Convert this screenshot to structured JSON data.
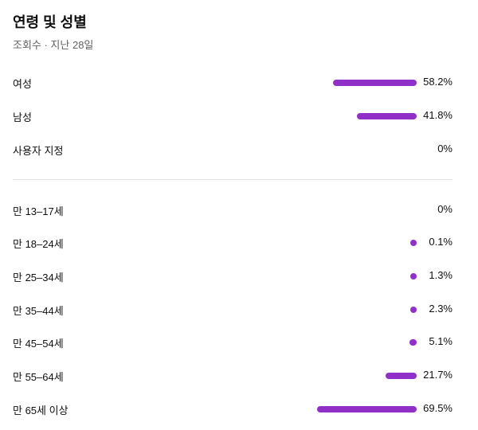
{
  "header": {
    "title": "연령 및 성별",
    "subtitle": "조회수 · 지난 28일"
  },
  "bar_color": "#9130c9",
  "gender": [
    {
      "label": "여성",
      "value": 58.2,
      "display": "58.2%"
    },
    {
      "label": "남성",
      "value": 41.8,
      "display": "41.8%"
    },
    {
      "label": "사용자 지정",
      "value": 0,
      "display": "0%"
    }
  ],
  "age": [
    {
      "label": "만 13–17세",
      "value": 0,
      "display": "0%"
    },
    {
      "label": "만 18–24세",
      "value": 0.1,
      "display": "0.1%"
    },
    {
      "label": "만 25–34세",
      "value": 1.3,
      "display": "1.3%"
    },
    {
      "label": "만 35–44세",
      "value": 2.3,
      "display": "2.3%"
    },
    {
      "label": "만 45–54세",
      "value": 5.1,
      "display": "5.1%"
    },
    {
      "label": "만 55–64세",
      "value": 21.7,
      "display": "21.7%"
    },
    {
      "label": "만 65세 이상",
      "value": 69.5,
      "display": "69.5%"
    }
  ]
}
